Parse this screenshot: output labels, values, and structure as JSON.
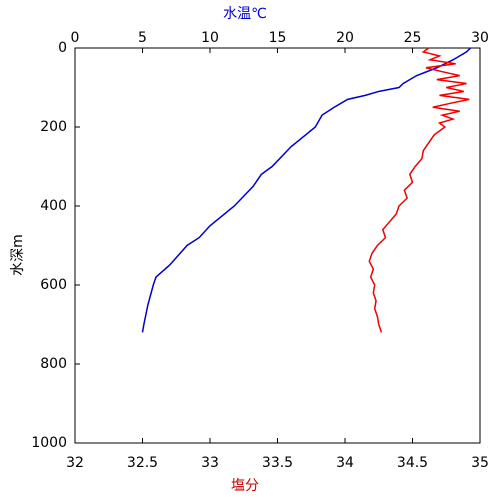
{
  "chart_data": {
    "type": "line",
    "x2_label": "水温℃",
    "x_label": "塩分",
    "y_label": "水深m",
    "xlim": [
      32,
      35
    ],
    "xticks": [
      32,
      32.5,
      33,
      33.5,
      34,
      34.5,
      35
    ],
    "x2lim": [
      0,
      30
    ],
    "x2ticks": [
      0,
      5,
      10,
      15,
      20,
      25,
      30
    ],
    "ylim": [
      0,
      1000
    ],
    "yticks": [
      0,
      200,
      400,
      600,
      800,
      1000
    ],
    "y_reversed": true,
    "x2_label_color": "#0000cc",
    "x_label_color": "#cc0000",
    "series": [
      {
        "color": "#0000cc",
        "axis": "x2",
        "x": [
          29.3,
          29.0,
          28.5,
          28.0,
          26.8,
          25.3,
          24.8,
          24.3,
          24.0,
          22.5,
          21.5,
          20.2,
          19.2,
          18.3,
          17.8,
          16.0,
          14.6,
          13.8,
          13.2,
          11.8,
          10.0,
          9.2,
          8.3,
          7.0,
          6.0,
          5.8,
          5.4,
          5.1,
          5.0
        ],
        "y": [
          0,
          10,
          20,
          30,
          50,
          70,
          80,
          90,
          100,
          110,
          120,
          130,
          150,
          170,
          200,
          250,
          300,
          320,
          350,
          400,
          450,
          480,
          500,
          550,
          580,
          600,
          650,
          700,
          720
        ]
      },
      {
        "color": "#ee0000",
        "x": [
          34.62,
          34.58,
          34.7,
          34.63,
          34.82,
          34.6,
          34.72,
          34.85,
          34.68,
          34.9,
          34.75,
          34.88,
          34.7,
          34.92,
          34.78,
          34.65,
          34.85,
          34.72,
          34.8,
          34.7,
          34.74,
          34.66,
          34.62,
          34.58,
          34.57,
          34.52,
          34.48,
          34.5,
          34.44,
          34.46,
          34.4,
          34.38,
          34.33,
          34.28,
          34.3,
          34.24,
          34.2,
          34.18,
          34.21,
          34.19,
          34.22,
          34.21,
          34.23,
          34.22,
          34.24,
          34.25,
          34.27
        ],
        "y": [
          0,
          10,
          20,
          30,
          40,
          50,
          60,
          70,
          80,
          90,
          100,
          110,
          120,
          130,
          140,
          150,
          160,
          170,
          180,
          190,
          200,
          220,
          240,
          260,
          280,
          300,
          320,
          340,
          360,
          380,
          400,
          420,
          440,
          460,
          480,
          500,
          520,
          540,
          560,
          580,
          600,
          620,
          640,
          660,
          680,
          700,
          720
        ]
      }
    ]
  }
}
